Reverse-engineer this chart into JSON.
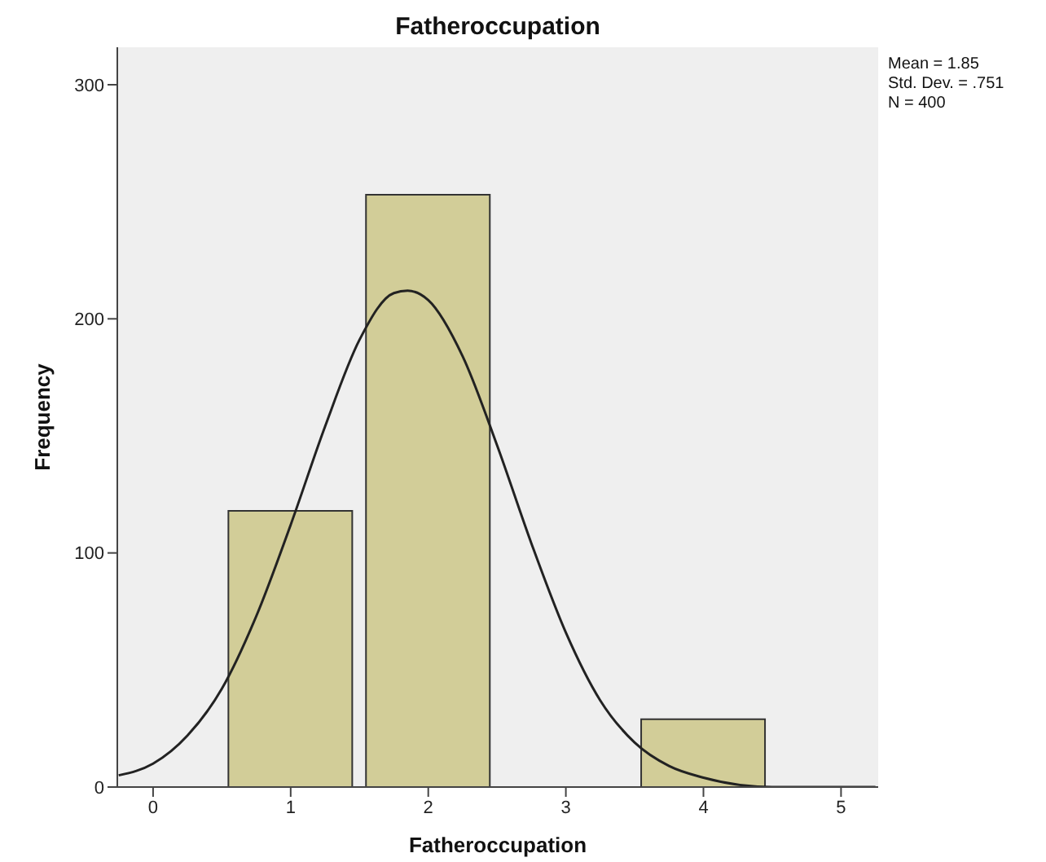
{
  "chart_data": {
    "type": "histogram",
    "title": "Fatheroccupation",
    "xlabel": "Fatheroccupation",
    "ylabel": "Frequency",
    "annotations": [
      "Mean = 1.85",
      "Std. Dev. = .751",
      "N = 400"
    ],
    "bins": [
      0.5,
      1.5,
      2.5,
      3.5,
      4.5
    ],
    "series": [
      {
        "color": "#d2cd98",
        "values": [
          118,
          253,
          0,
          29
        ]
      },
      {
        "type": "line",
        "color": "#222222",
        "x": [
          -0.25,
          0,
          0.25,
          0.5,
          0.75,
          1,
          1.25,
          1.5,
          1.75,
          1.85,
          2,
          2.25,
          2.5,
          2.75,
          3,
          3.25,
          3.5,
          3.75,
          4,
          4.5,
          5,
          5.25
        ],
        "values": [
          5,
          10,
          22,
          42,
          73,
          112,
          154,
          191,
          211,
          212,
          208,
          184,
          146,
          104,
          66,
          37,
          19,
          9,
          4,
          0,
          0,
          0
        ]
      }
    ],
    "xlim": [
      -0.26,
      5.27
    ],
    "xticks": [
      0,
      1,
      2,
      3,
      4,
      5
    ],
    "ylim": [
      0,
      316
    ],
    "yticks": [
      0,
      100,
      200,
      300
    ],
    "grid": false,
    "marker": "none",
    "line_style": "solid"
  }
}
